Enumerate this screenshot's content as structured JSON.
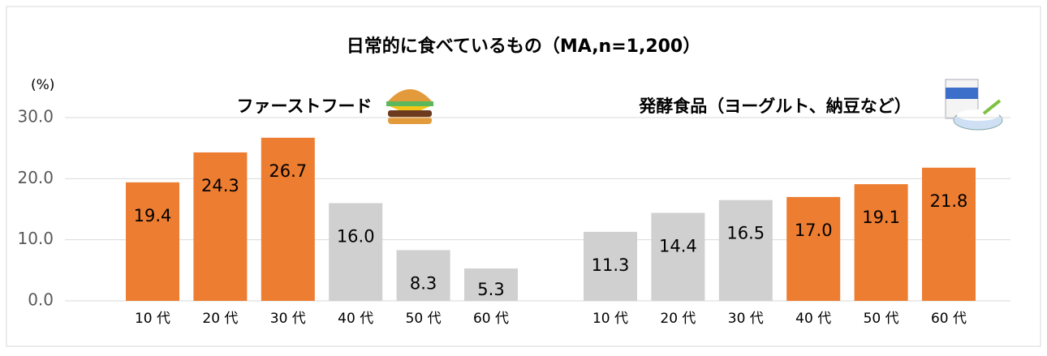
{
  "chart_data": {
    "type": "bar",
    "title": "日常的に食べているもの（MA,n=1,200）",
    "ylabel": "(%)",
    "categories": [
      "10 代",
      "20 代",
      "30 代",
      "40 代",
      "50 代",
      "60 代"
    ],
    "series": [
      {
        "name": "ファーストフード",
        "values": [
          19.4,
          24.3,
          26.7,
          16.0,
          8.3,
          5.3
        ],
        "value_labels": [
          "19.4",
          "24.3",
          "26.7",
          "16.0",
          "8.3",
          "5.3"
        ],
        "colors": [
          "#ED7D31",
          "#ED7D31",
          "#ED7D31",
          "#D0D0D0",
          "#D0D0D0",
          "#D0D0D0"
        ]
      },
      {
        "name": "発酵食品（ヨーグルト、納豆など）",
        "values": [
          11.3,
          14.4,
          16.5,
          17.0,
          19.1,
          21.8
        ],
        "value_labels": [
          "11.3",
          "14.4",
          "16.5",
          "17.0",
          "19.1",
          "21.8"
        ],
        "colors": [
          "#D0D0D0",
          "#D0D0D0",
          "#D0D0D0",
          "#ED7D31",
          "#ED7D31",
          "#ED7D31"
        ]
      }
    ],
    "ylim": [
      0,
      30
    ],
    "yticks": [
      {
        "value": 0,
        "label": "0.0"
      },
      {
        "value": 10,
        "label": "10.0"
      },
      {
        "value": 20,
        "label": "20.0"
      },
      {
        "value": 30,
        "label": "30.0"
      }
    ],
    "grid": true
  }
}
